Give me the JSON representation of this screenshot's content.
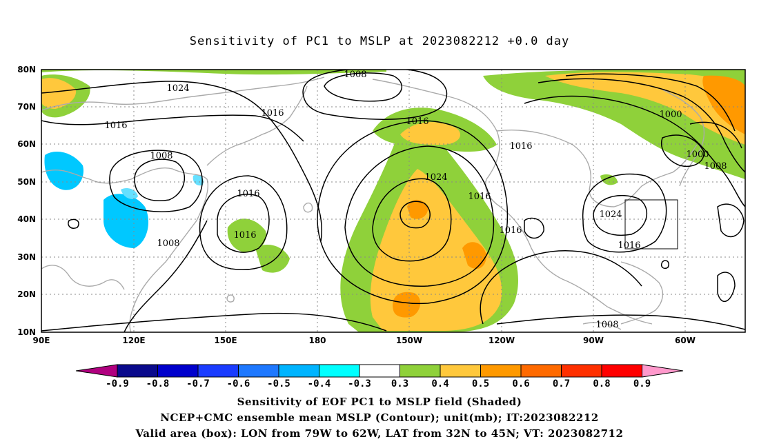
{
  "title": "Sensitivity of PC1 to MSLP at 2023082212 +0.0 day",
  "lat_ticks": [
    "80N",
    "70N",
    "60N",
    "50N",
    "40N",
    "30N",
    "20N",
    "10N"
  ],
  "lon_ticks": [
    "90E",
    "120E",
    "150E",
    "180",
    "150W",
    "120W",
    "90W",
    "60W"
  ],
  "contour_labels": [
    "1008",
    "1024",
    "1016",
    "1016",
    "1016",
    "1008",
    "1016",
    "1016",
    "1024",
    "1016",
    "1016",
    "1008",
    "1000",
    "1000",
    "1008",
    "1024",
    "1016",
    "1008"
  ],
  "colorbar": {
    "labels": [
      "-0.9",
      "-0.8",
      "-0.7",
      "-0.6",
      "-0.5",
      "-0.4",
      "-0.3",
      "0.3",
      "0.4",
      "0.5",
      "0.6",
      "0.7",
      "0.8",
      "0.9"
    ],
    "colors": [
      "#b0007f",
      "#0a0a8c",
      "#0000cc",
      "#1a3cff",
      "#1e78ff",
      "#00b4ff",
      "#00ffff",
      "#ffffff",
      "#8fd13a",
      "#ffc83c",
      "#ff9900",
      "#ff6a00",
      "#ff3000",
      "#ff0000",
      "#ff99cc"
    ]
  },
  "shade_colors": {
    "neg_light": "#66e0ff",
    "neg": "#00c8ff",
    "pos_green": "#8fd13a",
    "pos_yellow": "#ffc83c",
    "pos_orange": "#ff9900",
    "land": "#aaaaaa"
  },
  "captions": {
    "line1": "Sensitivity of EOF PC1 to MSLP field (Shaded)",
    "line2": "NCEP+CMC ensemble mean MSLP (Contour); unit(mb); IT:2023082212",
    "line3": "Valid area (box): LON from 79W to 62W, LAT from 32N to 45N; VT: 2023082712"
  },
  "valid_box": {
    "lon_min": -79,
    "lon_max": -62,
    "lat_min": 32,
    "lat_max": 45
  }
}
